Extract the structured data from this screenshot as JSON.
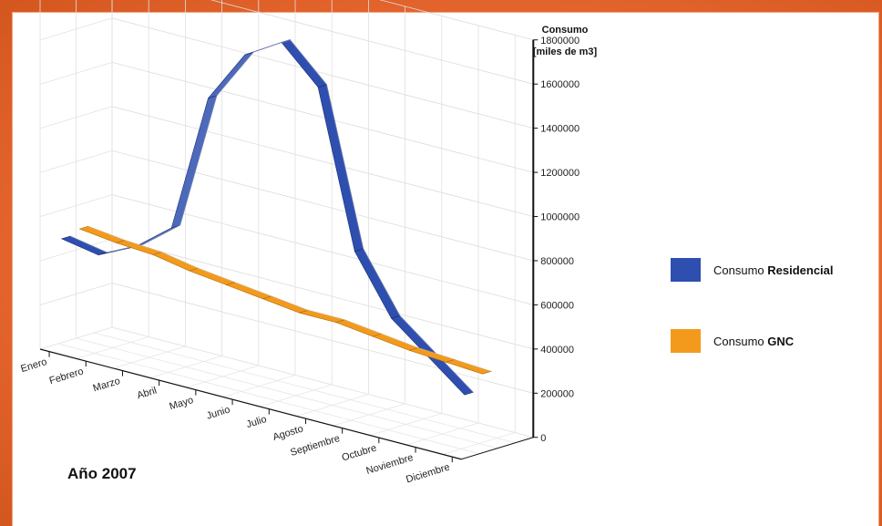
{
  "chart_data": {
    "type": "line",
    "title": "",
    "year_label": "Año 2007",
    "ylabel_line1": "Consumo",
    "ylabel_line2": "[miles de m3]",
    "ylim": [
      0,
      1800000
    ],
    "yticks": [
      "0",
      "200000",
      "400000",
      "600000",
      "800000",
      "1000000",
      "1200000",
      "1400000",
      "1600000",
      "1800000"
    ],
    "yticks_values": [
      0,
      200000,
      400000,
      600000,
      800000,
      1000000,
      1200000,
      1400000,
      1600000,
      1800000
    ],
    "categories": [
      "Enero",
      "Febrero",
      "Marzo",
      "Abril",
      "Mayo",
      "Junio",
      "Julio",
      "Agosto",
      "Septiembre",
      "Octubre",
      "Noviembre",
      "Diciembre"
    ],
    "grid": true,
    "legend_position": "right",
    "series": [
      {
        "name": "Consumo Residencial",
        "name_prefix": "Consumo ",
        "name_bold": "Residencial",
        "color": "#2e4fb0",
        "values": [
          470000,
          440000,
          520000,
          650000,
          1280000,
          1520000,
          1620000,
          1460000,
          760000,
          500000,
          370000,
          240000
        ]
      },
      {
        "name": "Consumo GNC",
        "name_prefix": "Consumo ",
        "name_bold": "GNC",
        "color": "#f39a1c",
        "values": [
          490000,
          470000,
          460000,
          430000,
          410000,
          390000,
          370000,
          370000,
          350000,
          330000,
          320000,
          310000
        ]
      }
    ]
  }
}
